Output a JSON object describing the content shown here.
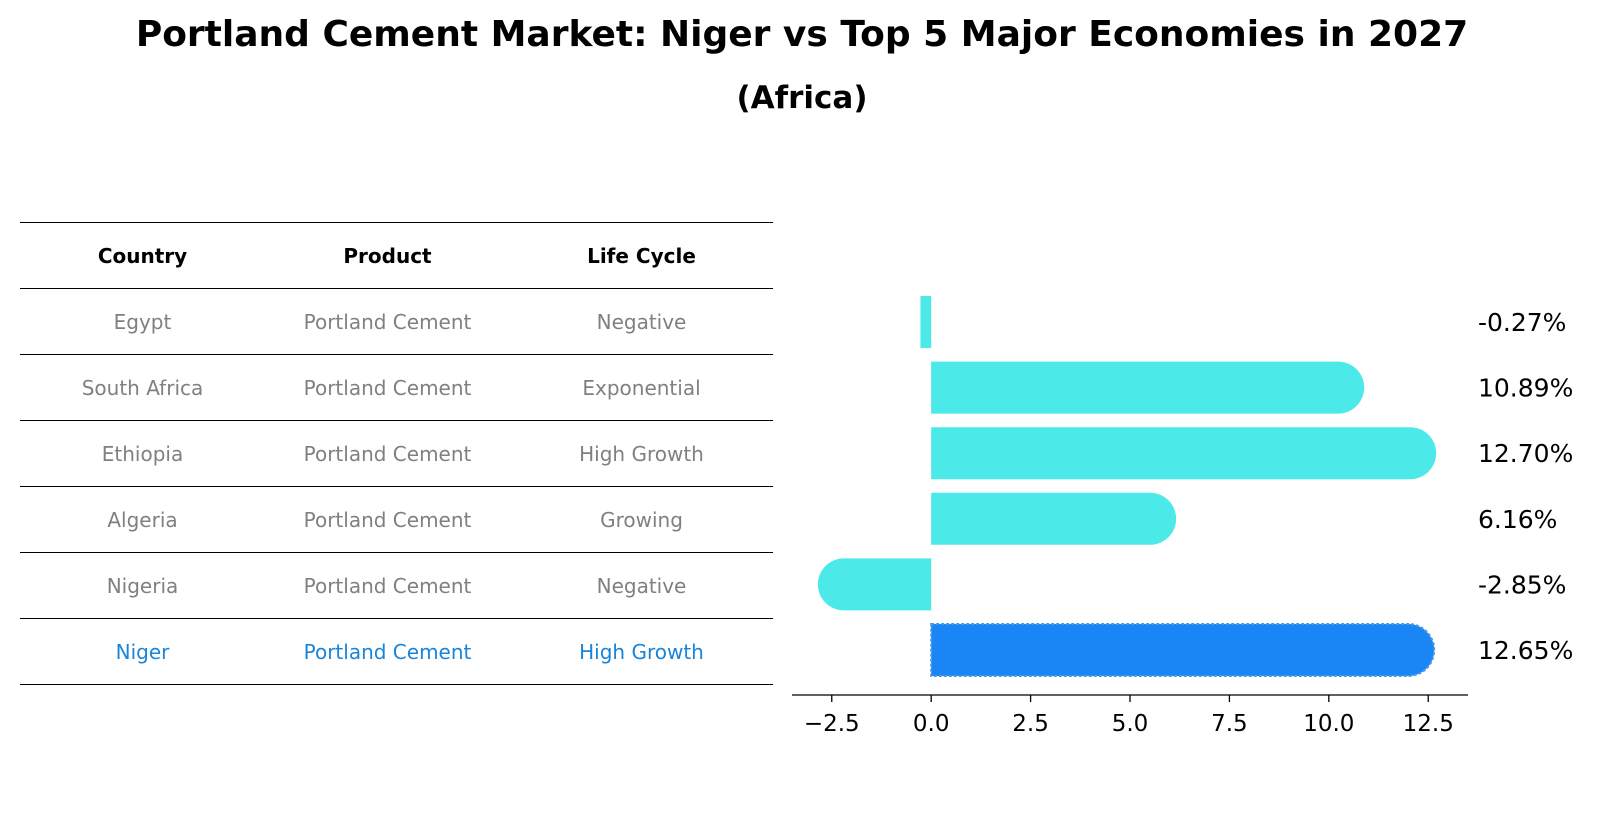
{
  "title": "Portland Cement Market: Niger vs Top 5 Major Economies in 2027",
  "subtitle": "(Africa)",
  "table": {
    "headers": [
      "Country",
      "Product",
      "Life Cycle"
    ],
    "rows": [
      [
        "Egypt",
        "Portland Cement",
        "Negative"
      ],
      [
        "South Africa",
        "Portland Cement",
        "Exponential"
      ],
      [
        "Ethiopia",
        "Portland Cement",
        "High Growth"
      ],
      [
        "Algeria",
        "Portland Cement",
        "Growing"
      ],
      [
        "Nigeria",
        "Portland Cement",
        "Negative"
      ],
      [
        "Niger",
        "Portland Cement",
        "High Growth"
      ]
    ],
    "highlight_row": 5
  },
  "chart_data": {
    "type": "bar",
    "orientation": "horizontal",
    "categories": [
      "Egypt",
      "South Africa",
      "Ethiopia",
      "Algeria",
      "Nigeria",
      "Niger"
    ],
    "values": [
      -0.27,
      10.89,
      12.7,
      6.16,
      -2.85,
      12.65
    ],
    "labels": [
      "-0.27%",
      "10.89%",
      "12.70%",
      "6.16%",
      "-2.85%",
      "12.65%"
    ],
    "highlight_index": 5,
    "xlim": [
      -3.5,
      13.5
    ],
    "xticks": [
      -2.5,
      0,
      2.5,
      5,
      7.5,
      10,
      12.5
    ],
    "xtick_labels": [
      "−2.5",
      "0.0",
      "2.5",
      "5.0",
      "7.5",
      "10.0",
      "12.5"
    ],
    "colors": {
      "default": "#4beae9",
      "highlight": "#1a85f5"
    }
  }
}
